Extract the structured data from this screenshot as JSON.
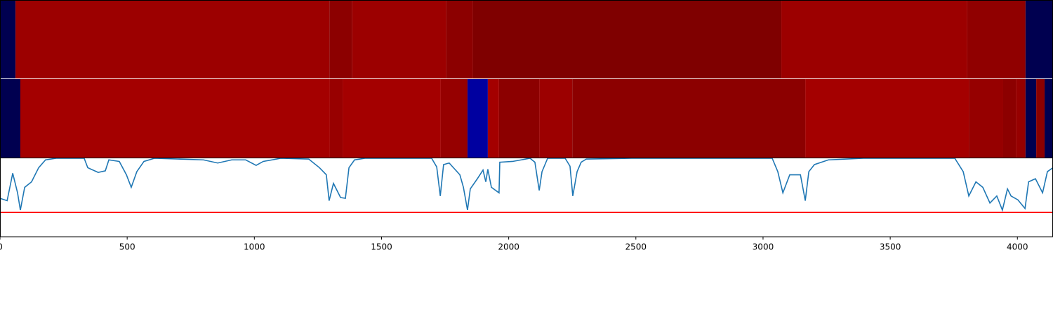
{
  "chart_data": {
    "type": "line",
    "xlim": [
      0,
      4140
    ],
    "xticks": [
      0,
      500,
      1000,
      1500,
      2000,
      2500,
      3000,
      3500,
      4000
    ],
    "ylim": [
      0,
      1
    ],
    "strips": [
      {
        "bounds": [
          0,
          61,
          1295,
          1385,
          1755,
          1860,
          3072,
          3803,
          4032,
          4140
        ],
        "colors": [
          "#000050",
          "#9c0000",
          "#8c0000",
          "#9c0000",
          "#8c0000",
          "#7f0000",
          "#9c0000",
          "#900000",
          "#000050"
        ]
      },
      {
        "bounds": [
          0,
          80,
          1297,
          1347,
          1733,
          1838,
          1918,
          1962,
          2120,
          2250,
          3166,
          3809,
          3944,
          3994,
          4032,
          4074,
          4107,
          4140
        ],
        "colors": [
          "#000050",
          "#a40000",
          "#980000",
          "#a40000",
          "#960000",
          "#0000a0",
          "#a40000",
          "#8c0000",
          "#9c0000",
          "#8c0000",
          "#a40000",
          "#960000",
          "#8c0000",
          "#960000",
          "#000050",
          "#8c0000",
          "#000050"
        ]
      }
    ],
    "x": [
      0,
      28,
      50,
      69,
      80,
      97,
      124,
      152,
      179,
      221,
      331,
      345,
      386,
      414,
      428,
      469,
      497,
      516,
      538,
      566,
      607,
      800,
      856,
      911,
      966,
      1007,
      1035,
      1104,
      1214,
      1256,
      1283,
      1294,
      1311,
      1339,
      1358,
      1372,
      1394,
      1435,
      1697,
      1717,
      1731,
      1744,
      1766,
      1808,
      1822,
      1838,
      1849,
      1877,
      1899,
      1910,
      1918,
      1932,
      1962,
      1965,
      2015,
      2084,
      2103,
      2120,
      2131,
      2153,
      2222,
      2241,
      2252,
      2269,
      2285,
      2305,
      2484,
      3036,
      3058,
      3078,
      3105,
      3147,
      3166,
      3180,
      3202,
      3257,
      3395,
      3754,
      3787,
      3809,
      3837,
      3864,
      3892,
      3919,
      3941,
      3961,
      3975,
      4002,
      4030,
      4044,
      4071,
      4099,
      4118,
      4140
    ],
    "series": [
      {
        "color": "#1f77b4",
        "values": [
          0.49,
          0.46,
          0.81,
          0.56,
          0.34,
          0.63,
          0.7,
          0.88,
          0.98,
          1.0,
          1.0,
          0.88,
          0.82,
          0.84,
          0.98,
          0.96,
          0.79,
          0.63,
          0.83,
          0.96,
          1.0,
          0.98,
          0.94,
          0.98,
          0.98,
          0.91,
          0.96,
          1.0,
          0.99,
          0.88,
          0.79,
          0.46,
          0.68,
          0.5,
          0.49,
          0.88,
          0.98,
          1.0,
          1.0,
          0.89,
          0.52,
          0.92,
          0.94,
          0.79,
          0.63,
          0.34,
          0.61,
          0.74,
          0.85,
          0.7,
          0.86,
          0.63,
          0.56,
          0.95,
          0.96,
          1.0,
          0.95,
          0.59,
          0.83,
          1.0,
          1.0,
          0.9,
          0.52,
          0.83,
          0.95,
          0.99,
          1.0,
          1.0,
          0.83,
          0.56,
          0.79,
          0.79,
          0.46,
          0.83,
          0.92,
          0.98,
          1.0,
          1.0,
          0.83,
          0.52,
          0.7,
          0.63,
          0.43,
          0.52,
          0.34,
          0.61,
          0.52,
          0.47,
          0.36,
          0.7,
          0.74,
          0.56,
          0.83,
          0.88
        ]
      }
    ],
    "threshold": {
      "value": 0.31,
      "color": "#ff0000"
    }
  }
}
